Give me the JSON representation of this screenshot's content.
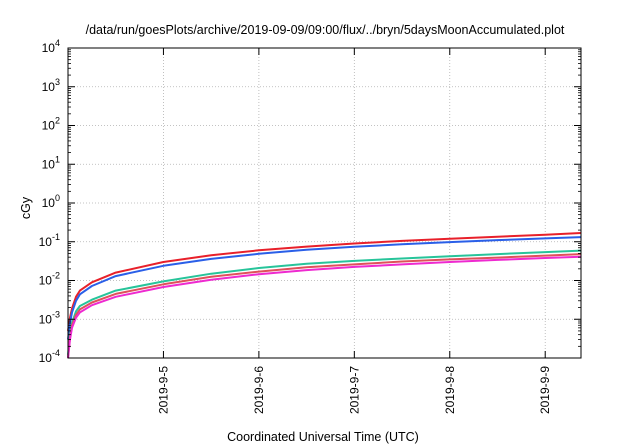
{
  "chart_data": {
    "type": "line",
    "title": "/data/run/goesPlots/archive/2019-09-09/09:00/flux/../bryn/5daysMoonAccumulated.plot",
    "xlabel": "Coordinated Universal Time (UTC)",
    "ylabel": "cGy",
    "y_scale": "log",
    "ylim": [
      0.0001,
      10000
    ],
    "xlim": [
      "2019-09-04 00:00",
      "2019-09-09 09:00"
    ],
    "grid": true,
    "x_ticks": [
      {
        "value": "2019-09-05 00:00",
        "label": "2019-9-5"
      },
      {
        "value": "2019-09-06 00:00",
        "label": "2019-9-6"
      },
      {
        "value": "2019-09-07 00:00",
        "label": "2019-9-7"
      },
      {
        "value": "2019-09-08 00:00",
        "label": "2019-9-8"
      },
      {
        "value": "2019-09-09 00:00",
        "label": "2019-9-9"
      }
    ],
    "y_ticks": [
      {
        "value": 0.0001,
        "base": "10",
        "exp": "-4"
      },
      {
        "value": 0.001,
        "base": "10",
        "exp": "-3"
      },
      {
        "value": 0.01,
        "base": "10",
        "exp": "-2"
      },
      {
        "value": 0.1,
        "base": "10",
        "exp": "-1"
      },
      {
        "value": 1,
        "base": "10",
        "exp": "0"
      },
      {
        "value": 10,
        "base": "10",
        "exp": "1"
      },
      {
        "value": 100,
        "base": "10",
        "exp": "2"
      },
      {
        "value": 1000,
        "base": "10",
        "exp": "3"
      },
      {
        "value": 10000,
        "base": "10",
        "exp": "4"
      }
    ],
    "x": [
      "2019-09-04 00:00",
      "2019-09-04 00:30",
      "2019-09-04 01:00",
      "2019-09-04 02:00",
      "2019-09-04 03:00",
      "2019-09-04 06:00",
      "2019-09-04 12:00",
      "2019-09-05 00:00",
      "2019-09-05 12:00",
      "2019-09-06 00:00",
      "2019-09-06 12:00",
      "2019-09-07 00:00",
      "2019-09-07 12:00",
      "2019-09-08 00:00",
      "2019-09-08 12:00",
      "2019-09-09 00:00",
      "2019-09-09 09:00"
    ],
    "series": [
      {
        "color": "#e8202a",
        "values": [
          0.0005,
          0.0011,
          0.0019,
          0.0038,
          0.0055,
          0.009,
          0.016,
          0.03,
          0.045,
          0.06,
          0.075,
          0.09,
          0.105,
          0.12,
          0.135,
          0.152,
          0.168
        ]
      },
      {
        "color": "#2a5fe8",
        "values": [
          0.0003,
          0.0008,
          0.0015,
          0.003,
          0.0044,
          0.0072,
          0.013,
          0.024,
          0.036,
          0.049,
          0.062,
          0.074,
          0.086,
          0.098,
          0.11,
          0.122,
          0.132
        ]
      },
      {
        "color": "#27c49a",
        "values": [
          0.00012,
          0.0004,
          0.0008,
          0.0016,
          0.0022,
          0.0032,
          0.0055,
          0.0095,
          0.015,
          0.021,
          0.027,
          0.032,
          0.037,
          0.042,
          0.048,
          0.054,
          0.059
        ]
      },
      {
        "color": "#e0505a",
        "values": [
          0.0001,
          0.00035,
          0.0007,
          0.0013,
          0.0018,
          0.0027,
          0.0045,
          0.008,
          0.0125,
          0.017,
          0.022,
          0.026,
          0.031,
          0.035,
          0.039,
          0.044,
          0.048
        ]
      },
      {
        "color": "#ee2ad0",
        "values": [
          0.0001,
          0.0003,
          0.0006,
          0.0011,
          0.0015,
          0.0023,
          0.0038,
          0.0068,
          0.0105,
          0.0145,
          0.0185,
          0.0225,
          0.026,
          0.03,
          0.034,
          0.038,
          0.041
        ]
      }
    ]
  }
}
